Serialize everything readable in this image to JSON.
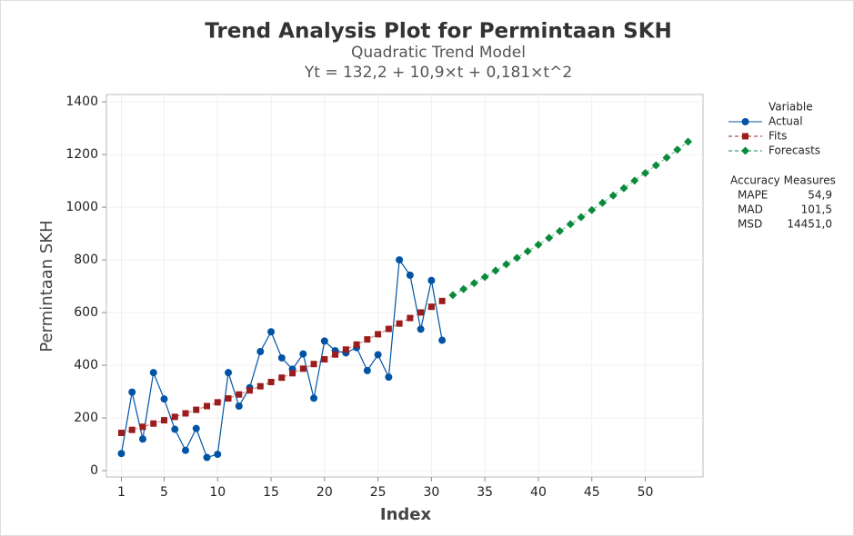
{
  "chart_data": {
    "type": "line",
    "title": "Trend Analysis Plot for Permintaan SKH",
    "subtitle": "Quadratic Trend Model",
    "equation": "Yt = 132,2 + 10,9×t + 0,181×t^2",
    "x_label": "Index",
    "y_label": "Permintaan SKH",
    "xlim": [
      -0.4,
      55.4
    ],
    "ylim": [
      -24,
      1428
    ],
    "xticks": [
      1,
      5,
      10,
      15,
      20,
      25,
      30,
      35,
      40,
      45,
      50
    ],
    "yticks": [
      0,
      200,
      400,
      600,
      800,
      1000,
      1200,
      1400
    ],
    "grid": true,
    "legend_title": "Variable",
    "series": [
      {
        "name": "Actual",
        "color": "#0054a6",
        "marker": "circle",
        "dashed": false,
        "x": [
          1,
          2,
          3,
          4,
          5,
          6,
          7,
          8,
          9,
          10,
          11,
          12,
          13,
          14,
          15,
          16,
          17,
          18,
          19,
          20,
          21,
          22,
          23,
          24,
          25,
          26,
          27,
          28,
          29,
          30,
          31
        ],
        "values": [
          65,
          298,
          120,
          372,
          272,
          157,
          77,
          160,
          50,
          62,
          372,
          245,
          315,
          452,
          527,
          428,
          385,
          443,
          275,
          492,
          455,
          447,
          467,
          380,
          440,
          355,
          800,
          742,
          537,
          722,
          495
        ]
      },
      {
        "name": "Fits",
        "color": "#9b1c1c",
        "marker": "square",
        "dashed": true,
        "x": [
          1,
          2,
          3,
          4,
          5,
          6,
          7,
          8,
          9,
          10,
          11,
          12,
          13,
          14,
          15,
          16,
          17,
          18,
          19,
          20,
          21,
          22,
          23,
          24,
          25,
          26,
          27,
          28,
          29,
          30,
          31
        ],
        "values": [
          143.3,
          154.7,
          166.5,
          178.7,
          191.2,
          204.1,
          217.4,
          231.0,
          245.0,
          259.3,
          274.0,
          289.1,
          304.5,
          320.3,
          336.4,
          352.9,
          369.8,
          387.0,
          404.6,
          422.6,
          440.9,
          459.6,
          478.6,
          498.1,
          517.8,
          538.0,
          558.4,
          579.3,
          600.5,
          622.1,
          644.0
        ]
      },
      {
        "name": "Forecasts",
        "color": "#0a8a3c",
        "marker": "diamond",
        "dashed": true,
        "x": [
          32,
          33,
          34,
          35,
          36,
          37,
          38,
          39,
          40,
          41,
          42,
          43,
          44,
          45,
          46,
          47,
          48,
          49,
          50,
          51,
          52,
          53,
          54
        ],
        "values": [
          666.3,
          689.0,
          712.0,
          735.4,
          759.2,
          783.3,
          807.8,
          832.6,
          857.8,
          883.4,
          909.3,
          935.6,
          962.2,
          989.2,
          1016.6,
          1044.3,
          1072.4,
          1100.9,
          1129.7,
          1158.9,
          1188.4,
          1218.3,
          1248.6
        ]
      }
    ],
    "accuracy_title": "Accuracy Measures",
    "accuracy": [
      {
        "name": "MAPE",
        "value": "54,9"
      },
      {
        "name": "MAD",
        "value": "101,5"
      },
      {
        "name": "MSD",
        "value": "14451,0"
      }
    ]
  }
}
